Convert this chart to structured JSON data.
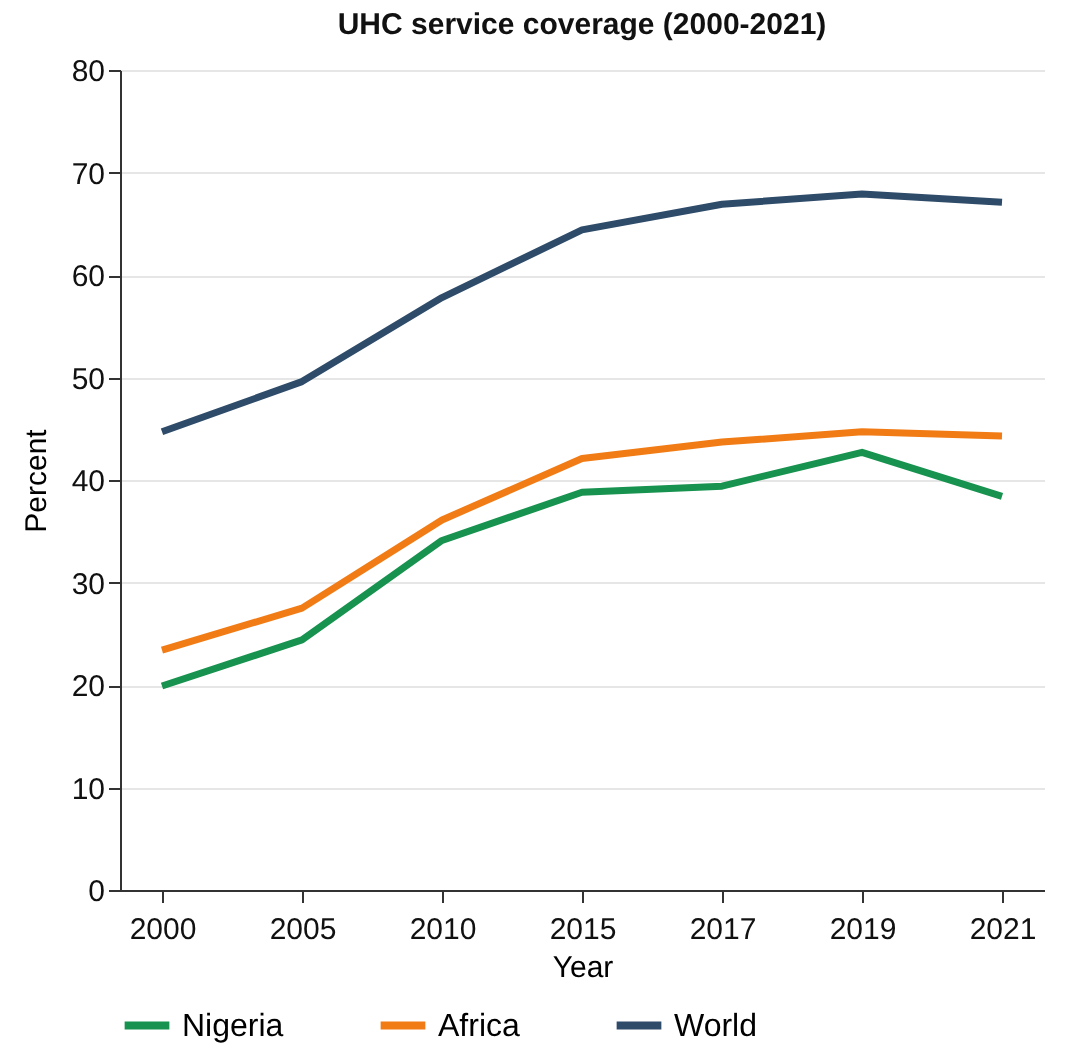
{
  "chart_data": {
    "type": "line",
    "title": "UHC service coverage (2000-2021)",
    "xlabel": "Year",
    "ylabel": "Percent",
    "categories": [
      "2000",
      "2005",
      "2010",
      "2015",
      "2017",
      "2019",
      "2021"
    ],
    "series": [
      {
        "name": "Nigeria",
        "color": "#17924f",
        "values": [
          19.9,
          24.4,
          34.1,
          38.8,
          39.4,
          42.7,
          38.4
        ]
      },
      {
        "name": "Africa",
        "color": "#f17c16",
        "values": [
          23.4,
          27.5,
          36.1,
          42.1,
          43.7,
          44.7,
          44.3
        ]
      },
      {
        "name": "World",
        "color": "#2e4b69",
        "values": [
          44.7,
          49.6,
          57.8,
          64.4,
          66.9,
          67.9,
          67.1
        ]
      }
    ],
    "ylim": [
      0,
      80
    ],
    "yticks": [
      0,
      10,
      20,
      30,
      40,
      50,
      60,
      70,
      80
    ],
    "grid": "y",
    "legend": "bottom",
    "marker": "none",
    "line_style": "solid"
  }
}
